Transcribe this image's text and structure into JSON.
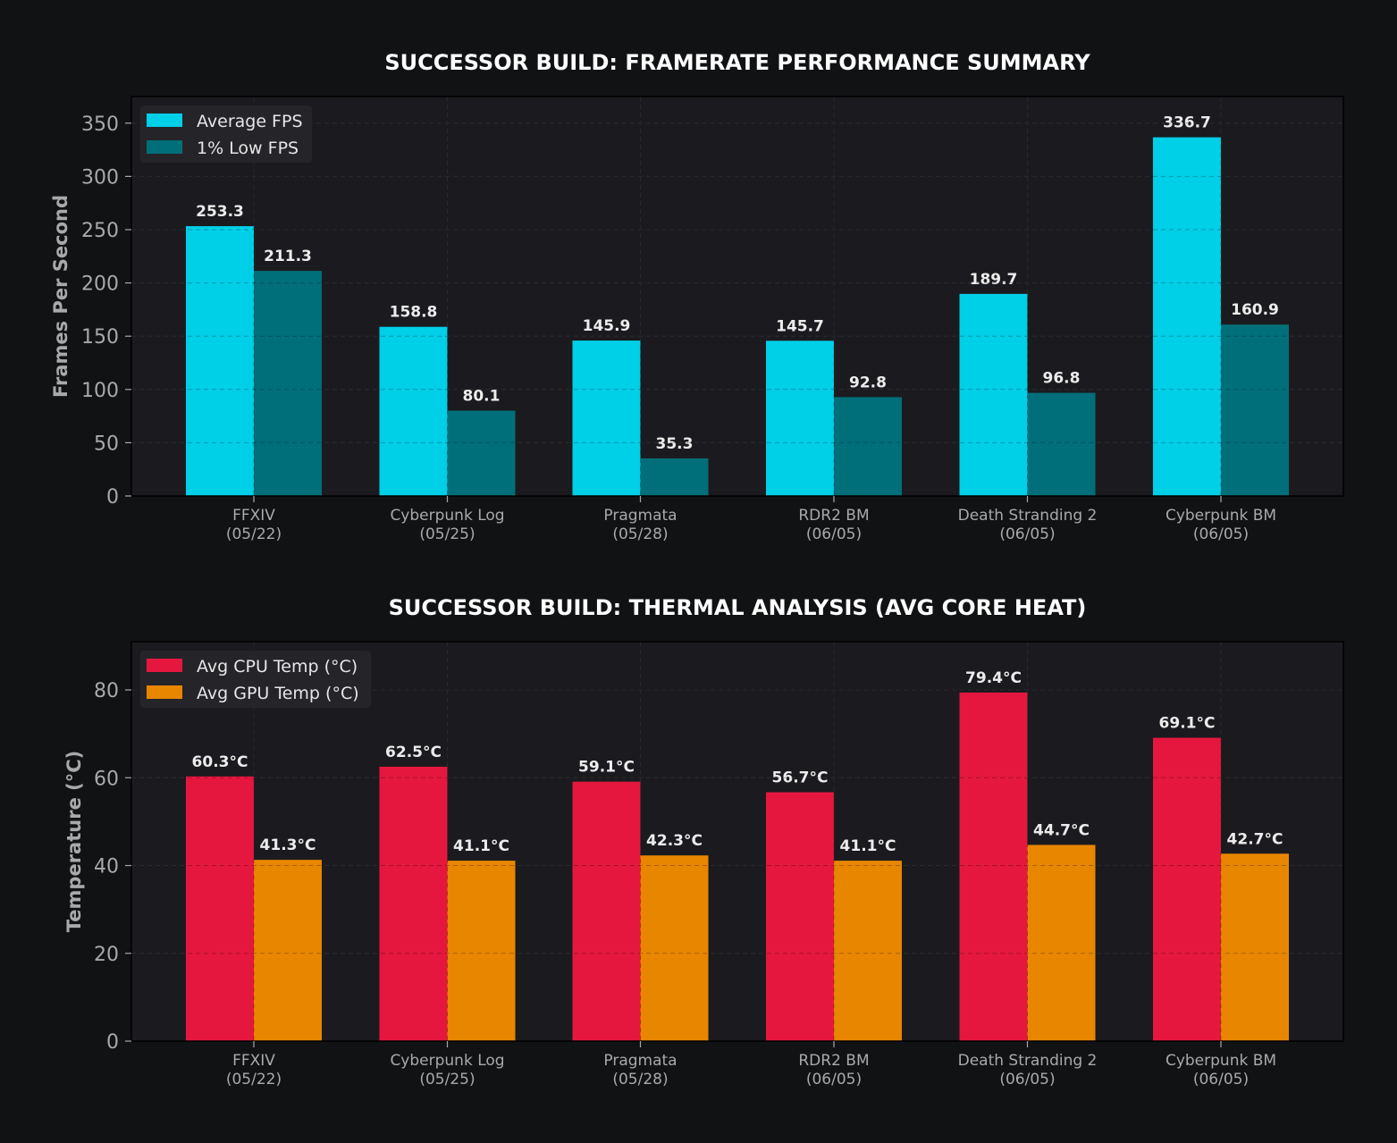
{
  "chart_data": [
    {
      "type": "bar",
      "title": "SUCCESSOR BUILD: FRAMERATE PERFORMANCE SUMMARY",
      "xlabel": "",
      "ylabel": "Frames Per Second",
      "ylim": [
        0,
        375
      ],
      "yticks": [
        0,
        50,
        100,
        150,
        200,
        250,
        300,
        350
      ],
      "grid": true,
      "legend_position": "top-left",
      "categories": [
        [
          "FFXIV",
          "(05/22)"
        ],
        [
          "Cyberpunk Log",
          "(05/25)"
        ],
        [
          "Pragmata",
          "(05/28)"
        ],
        [
          "RDR2 BM",
          "(06/05)"
        ],
        [
          "Death Stranding 2",
          "(06/05)"
        ],
        [
          "Cyberpunk BM",
          "(06/05)"
        ]
      ],
      "series": [
        {
          "name": "Average FPS",
          "color": "#00cfe8",
          "values": [
            253.3,
            158.8,
            145.9,
            145.7,
            189.7,
            336.7
          ],
          "labels": [
            "253.3",
            "158.8",
            "145.9",
            "145.7",
            "189.7",
            "336.7"
          ]
        },
        {
          "name": "1% Low FPS",
          "color": "#006f7a",
          "values": [
            211.3,
            80.1,
            35.3,
            92.8,
            96.8,
            160.9
          ],
          "labels": [
            "211.3",
            "80.1",
            "35.3",
            "92.8",
            "96.8",
            "160.9"
          ]
        }
      ]
    },
    {
      "type": "bar",
      "title": "SUCCESSOR BUILD: THERMAL ANALYSIS (AVG CORE HEAT)",
      "xlabel": "",
      "ylabel": "Temperature (°C)",
      "ylim": [
        0,
        91
      ],
      "yticks": [
        0,
        20,
        40,
        60,
        80
      ],
      "grid": true,
      "legend_position": "top-left",
      "categories": [
        [
          "FFXIV",
          "(05/22)"
        ],
        [
          "Cyberpunk Log",
          "(05/25)"
        ],
        [
          "Pragmata",
          "(05/28)"
        ],
        [
          "RDR2 BM",
          "(06/05)"
        ],
        [
          "Death Stranding 2",
          "(06/05)"
        ],
        [
          "Cyberpunk BM",
          "(06/05)"
        ]
      ],
      "series": [
        {
          "name": "Avg CPU Temp (°C)",
          "color": "#e6173f",
          "values": [
            60.3,
            62.5,
            59.1,
            56.7,
            79.4,
            69.1
          ],
          "labels": [
            "60.3°C",
            "62.5°C",
            "59.1°C",
            "56.7°C",
            "79.4°C",
            "69.1°C"
          ]
        },
        {
          "name": "Avg GPU Temp (°C)",
          "color": "#e88600",
          "values": [
            41.3,
            41.1,
            42.3,
            41.1,
            44.7,
            42.7
          ],
          "labels": [
            "41.3°C",
            "41.1°C",
            "42.3°C",
            "41.1°C",
            "44.7°C",
            "42.7°C"
          ]
        }
      ]
    }
  ],
  "colors": {
    "background": "#111214",
    "plot_area": "#1b1b1f",
    "grid": "#3a3a40",
    "axis": "#000000"
  }
}
